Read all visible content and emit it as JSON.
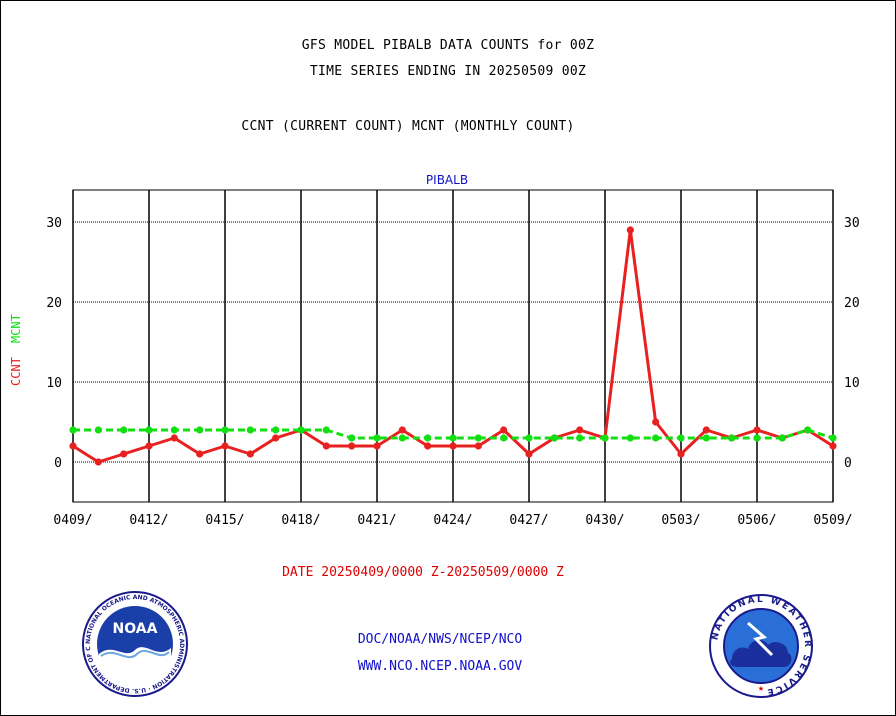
{
  "header": {
    "title_line1": "GFS MODEL PIBALB DATA COUNTS for 00Z",
    "title_line2": "TIME SERIES ENDING IN 20250509 00Z",
    "subtitle": "CCNT (CURRENT COUNT) MCNT (MONTHLY COUNT)"
  },
  "footer": {
    "date_range": "DATE 20250409/0000 Z-20250509/0000 Z",
    "org_path": "DOC/NOAA/NWS/NCEP/NCO",
    "website": "WWW.NCO.NCEP.NOAA.GOV"
  },
  "logos": {
    "noaa_text": "NOAA",
    "noaa_ring": "NATIONAL OCEANIC AND ATMOSPHERIC ADMINISTRATION · U.S. DEPARTMENT OF COMMERCE",
    "nws_ring": "NATIONAL WEATHER SERVICE"
  },
  "colors": {
    "ccnt": "#e82020",
    "mcnt": "#10e010",
    "panel_label": "#1010c8",
    "grid": "#000000"
  },
  "chart_data": {
    "type": "line",
    "title": "PIBALB",
    "ylabel_series": [
      {
        "text": "CCNT",
        "color": "#e82020"
      },
      {
        "text": "MCNT",
        "color": "#10e010"
      }
    ],
    "ylim": [
      -5,
      34
    ],
    "yticks": [
      0,
      10,
      20,
      30
    ],
    "xlim": [
      0,
      30
    ],
    "xticks": [
      0,
      3,
      6,
      9,
      12,
      15,
      18,
      21,
      24,
      27,
      30
    ],
    "xtick_labels": [
      "0409/",
      "0412/",
      "0415/",
      "0418/",
      "0421/",
      "0424/",
      "0427/",
      "0430/",
      "0503/",
      "0506/",
      "0509/"
    ],
    "grid": true,
    "series": [
      {
        "name": "CCNT",
        "color": "#e82020",
        "style": "solid",
        "x": [
          0,
          1,
          2,
          3,
          4,
          5,
          6,
          7,
          8,
          9,
          10,
          11,
          12,
          13,
          14,
          15,
          16,
          17,
          18,
          19,
          20,
          21,
          22,
          23,
          24,
          25,
          26,
          27,
          28,
          29,
          30
        ],
        "values": [
          2,
          0,
          1,
          2,
          3,
          1,
          2,
          1,
          3,
          4,
          2,
          2,
          2,
          4,
          2,
          2,
          2,
          4,
          1,
          3,
          4,
          3,
          29,
          5,
          1,
          4,
          3,
          4,
          3,
          4,
          2
        ]
      },
      {
        "name": "MCNT",
        "color": "#10e010",
        "style": "dashed",
        "x": [
          0,
          1,
          2,
          3,
          4,
          5,
          6,
          7,
          8,
          9,
          10,
          11,
          12,
          13,
          14,
          15,
          16,
          17,
          18,
          19,
          20,
          21,
          22,
          23,
          24,
          25,
          26,
          27,
          28,
          29,
          30
        ],
        "values": [
          4,
          4,
          4,
          4,
          4,
          4,
          4,
          4,
          4,
          4,
          4,
          3,
          3,
          3,
          3,
          3,
          3,
          3,
          3,
          3,
          3,
          3,
          3,
          3,
          3,
          3,
          3,
          3,
          3,
          4,
          3
        ]
      }
    ]
  }
}
